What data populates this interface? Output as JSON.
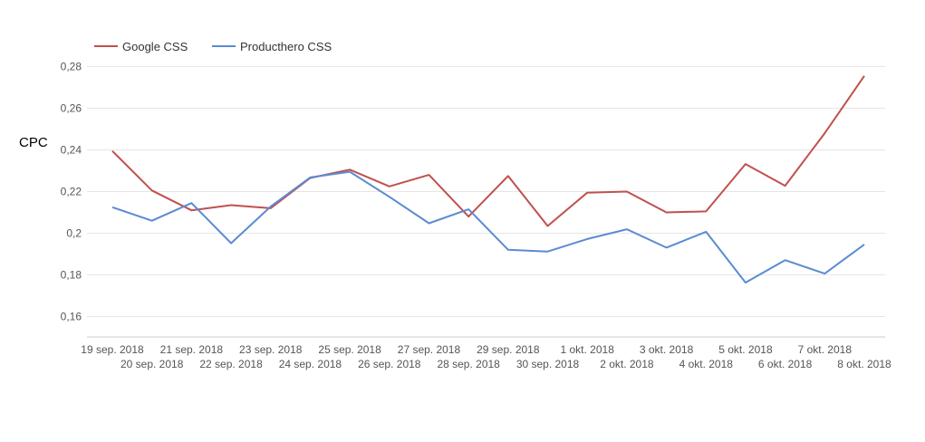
{
  "chart_data": {
    "type": "line",
    "title": "",
    "xlabel": "",
    "ylabel": "CPC",
    "ylim": [
      0.15,
      0.28
    ],
    "yticks": [
      "0,16",
      "0,18",
      "0,2",
      "0,22",
      "0,24",
      "0,26",
      "0,28"
    ],
    "yticks_values": [
      0.16,
      0.18,
      0.2,
      0.22,
      0.24,
      0.26,
      0.28
    ],
    "grid": true,
    "legend_position": "top-left",
    "categories": [
      "19 sep. 2018",
      "20 sep. 2018",
      "21 sep. 2018",
      "22 sep. 2018",
      "23 sep. 2018",
      "24 sep. 2018",
      "25 sep. 2018",
      "26 sep. 2018",
      "27 sep. 2018",
      "28 sep. 2018",
      "29 sep. 2018",
      "30 sep. 2018",
      "1 okt. 2018",
      "2 okt. 2018",
      "3 okt. 2018",
      "4 okt. 2018",
      "5 okt. 2018",
      "6 okt. 2018",
      "7 okt. 2018",
      "8 okt. 2018"
    ],
    "series": [
      {
        "name": "Google CSS",
        "color": "#c0504d",
        "values": [
          0.2395,
          0.2205,
          0.211,
          0.2135,
          0.212,
          0.2265,
          0.2305,
          0.2225,
          0.228,
          0.208,
          0.2275,
          0.2035,
          0.2195,
          0.22,
          0.21,
          0.2105,
          0.2332,
          0.2228,
          0.248,
          0.2755
        ]
      },
      {
        "name": "Producthero CSS",
        "color": "#5b8bd1",
        "values": [
          0.2125,
          0.206,
          0.2145,
          0.1952,
          0.2128,
          0.2268,
          0.2295,
          0.2175,
          0.2048,
          0.2115,
          0.1921,
          0.1912,
          0.1972,
          0.2019,
          0.1931,
          0.2007,
          0.1763,
          0.1871,
          0.1806,
          0.1946
        ]
      }
    ]
  }
}
